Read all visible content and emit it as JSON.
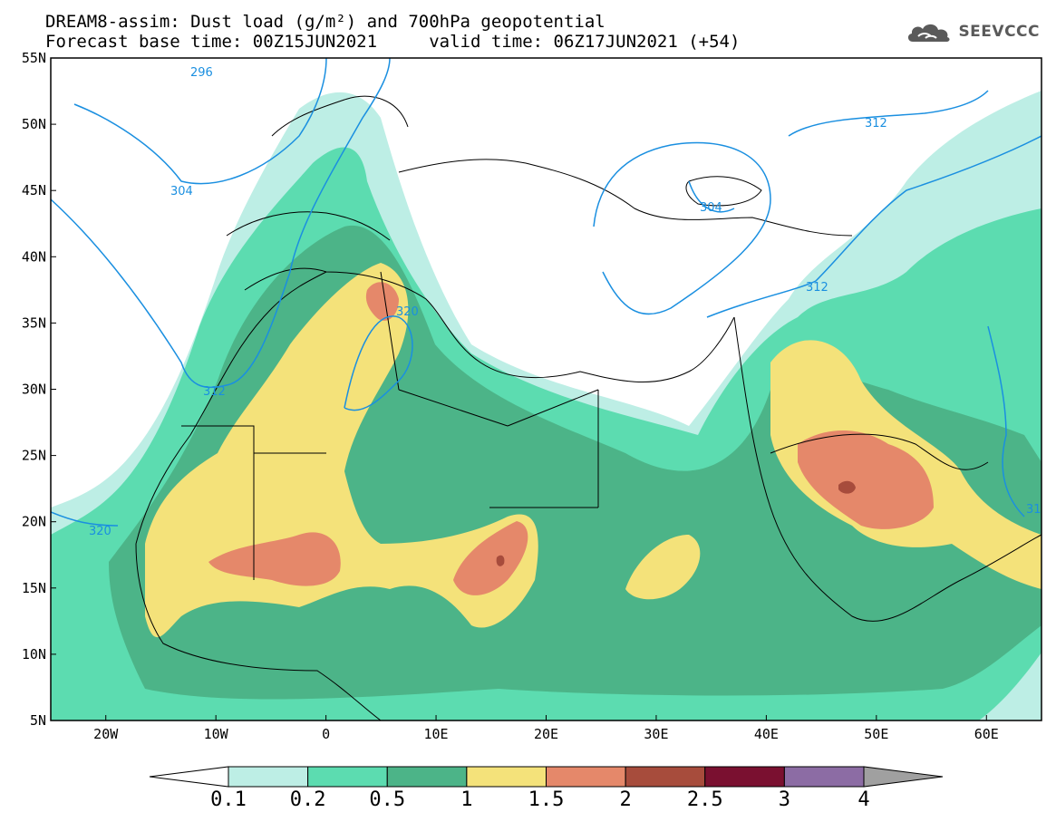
{
  "title": {
    "line1": "DREAM8-assim: Dust load (g/m²) and 700hPa geopotential",
    "line2": "Forecast base time: 00Z15JUN2021     valid time: 06Z17JUN2021 (+54)"
  },
  "logo": {
    "text": "SEEVCCC",
    "icon": "cloud-icon"
  },
  "map": {
    "lon_range": [
      -25,
      65
    ],
    "lat_range": [
      5,
      55
    ],
    "lon_ticks": [
      "20W",
      "10W",
      "0",
      "10E",
      "20E",
      "30E",
      "40E",
      "50E",
      "60E"
    ],
    "lat_ticks": [
      "55N",
      "50N",
      "45N",
      "40N",
      "35N",
      "30N",
      "25N",
      "20N",
      "15N",
      "10N",
      "5N"
    ],
    "contour_labels": [
      "296",
      "304",
      "312",
      "320",
      "320",
      "312",
      "304",
      "312",
      "31"
    ]
  },
  "colorbar": {
    "levels": [
      "0.1",
      "0.2",
      "0.5",
      "1",
      "1.5",
      "2",
      "2.5",
      "3",
      "4"
    ],
    "colors": [
      "#ffffff",
      "#bdeee5",
      "#5cdcb0",
      "#4cb488",
      "#f4e27a",
      "#e5886a",
      "#a74c3c",
      "#7a1030",
      "#8c6ca4",
      "#a0a0a0"
    ]
  }
}
